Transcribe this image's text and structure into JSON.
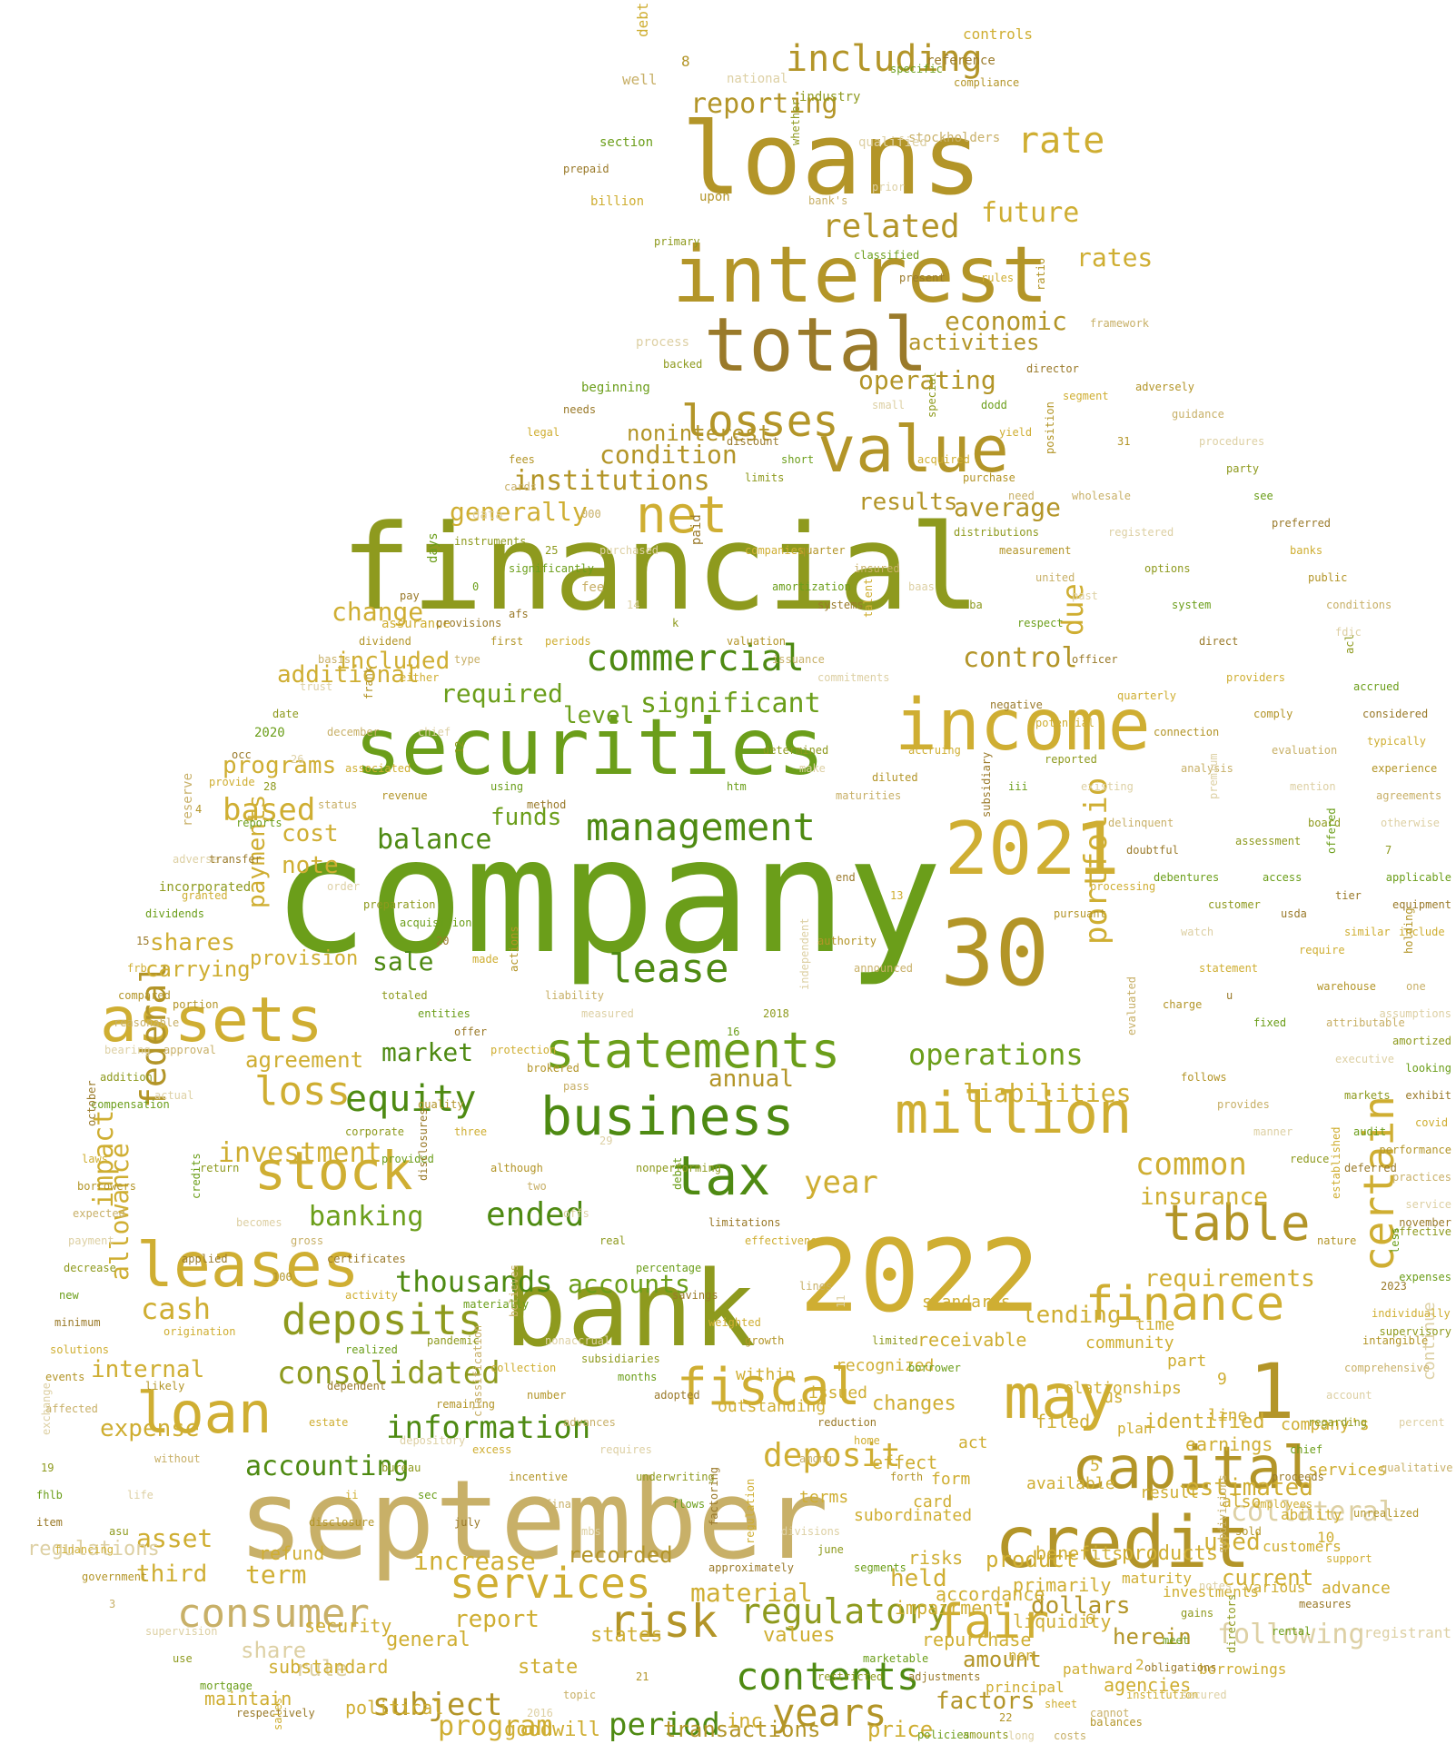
{
  "palette": {
    "background": "#ffffff",
    "green_dark": "#4e8a12",
    "green": "#6b9e1a",
    "olive": "#8e9a1e",
    "gold_dark": "#b39528",
    "gold": "#cfae32",
    "tan": "#c8b068",
    "light_tan": "#ddd0a4",
    "brown": "#9a7a2a"
  },
  "words": [
    "company",
    "financial",
    "september",
    "bank",
    "2022",
    "loans",
    "securities",
    "interest",
    "total",
    "30",
    "2021",
    "income",
    "value",
    "credit",
    "business",
    "statements",
    "capital",
    "million",
    "assets",
    "may",
    "leases",
    "loan",
    "tax",
    "fiscal",
    "finance",
    "fair",
    "stock",
    "table",
    "risk",
    "services",
    "deposits",
    "consumer",
    "net",
    "commercial",
    "management",
    "lease",
    "losses",
    "1",
    "certain",
    "contents",
    "years",
    "equity",
    "including",
    "related",
    "rate",
    "deposit",
    "information",
    "loss",
    "federal",
    "consolidated",
    "banking",
    "regulatory",
    "period",
    "cash",
    "year",
    "accounting",
    "operations",
    "liabilities",
    "subject",
    "ended",
    "portfolio",
    "due",
    "thousands",
    "program",
    "investment",
    "allowance",
    "common",
    "collateral",
    "following",
    "insurance",
    "lending",
    "requirements",
    "accounts",
    "reporting",
    "rates",
    "future",
    "economic",
    "operating",
    "activities",
    "condition",
    "institutions",
    "noninterest",
    "results",
    "average",
    "generally",
    "significant",
    "included",
    "control",
    "additional",
    "change",
    "required",
    "level",
    "balance",
    "funds",
    "based",
    "programs",
    "cost",
    "payments",
    "note",
    "shares",
    "carrying",
    "provision",
    "sale",
    "market",
    "annual",
    "agreement",
    "impact",
    "internal",
    "expense",
    "asset",
    "third",
    "regulations",
    "share",
    "rule",
    "report",
    "increase",
    "term",
    "recorded",
    "material",
    "held",
    "dollars",
    "herein",
    "amount",
    "factors",
    "transactions",
    "price",
    "goodwill",
    "inc",
    "values",
    "general",
    "states",
    "state",
    "political",
    "maintain",
    "security",
    "refund",
    "substandard",
    "impairment",
    "risks",
    "accordance",
    "repurchase",
    "liquidity",
    "primarily",
    "benefits",
    "agencies",
    "product",
    "products",
    "used",
    "current",
    "advance",
    "continue",
    "registrant",
    "estimated",
    "identified",
    "earnings",
    "9",
    "part",
    "filed",
    "act",
    "available",
    "effect",
    "changes",
    "receivable",
    "recognized",
    "terms",
    "subordinated",
    "form",
    "card",
    "outstanding",
    "within",
    "issued",
    "plan",
    "standards",
    "relationships",
    "community",
    "time",
    "us",
    "5",
    "result",
    "also",
    "line",
    "company's",
    "services",
    "ability",
    "10",
    "customers",
    "various",
    "investments",
    "maturity",
    "6",
    "non",
    "principal",
    "pathward",
    "borrowings",
    "2",
    "debt",
    "8",
    "well",
    "national",
    "industry",
    "specific",
    "reference",
    "controls",
    "compliance",
    "stockholders",
    "qualified",
    "whether",
    "section",
    "prepaid",
    "billion",
    "upon",
    "bank's",
    "prior",
    "primary",
    "classified",
    "present",
    "rules",
    "ratio",
    "framework",
    "process",
    "backed",
    "beginning",
    "needs",
    "legal",
    "fees",
    "cards",
    "data",
    "instruments",
    "days",
    "pay",
    "assurance",
    "dividend",
    "basis",
    "trust",
    "date",
    "2020",
    "occ",
    "provide",
    "4",
    "reserve",
    "adverse",
    "incorporated",
    "dividends",
    "15",
    "frb",
    "compared",
    "reasonable",
    "bearing",
    "addition",
    "compensation",
    "october",
    "laws",
    "borrowers",
    "expected",
    "payment",
    "decrease",
    "new",
    "minimum",
    "solutions",
    "events",
    "affected",
    "exchange",
    "19",
    "fhlb",
    "item",
    "financing",
    "government",
    "3",
    "supervision",
    "use",
    "mortgage",
    "respectively",
    "sales",
    "adversely",
    "guidance",
    "procedures",
    "party",
    "see",
    "preferred",
    "banks",
    "public",
    "conditions",
    "fdic",
    "acl",
    "accrued",
    "considered",
    "typically",
    "experience",
    "agreements",
    "otherwise",
    "7",
    "applicable",
    "equipment",
    "include",
    "holding",
    "one",
    "assumptions",
    "amortized",
    "looking",
    "exhibit",
    "covid",
    "performance",
    "practices",
    "service",
    "effective",
    "less",
    "2023",
    "individually",
    "intangible",
    "comprehensive",
    "account",
    "regarding",
    "chief",
    "proceeds",
    "employees",
    "sold",
    "subdivisions",
    "notes",
    "gains",
    "meet",
    "obligations",
    "institution",
    "balances",
    "costs",
    "long",
    "amounts",
    "policies",
    "paid",
    "companies",
    "quarter",
    "insured",
    "baas",
    "sba",
    "respect",
    "officer",
    "quarterly",
    "connection",
    "analysis",
    "premium",
    "assessment",
    "access",
    "usda",
    "require",
    "warehouse",
    "attributable",
    "executive",
    "markets",
    "audit",
    "deferred",
    "established",
    "nature",
    "fee",
    "14",
    "k",
    "0",
    "afs",
    "periods",
    "first",
    "type",
    "chief",
    "12",
    "using",
    "method",
    "associated",
    "revenue",
    "status",
    "order",
    "preparation",
    "acquisition",
    "20",
    "made",
    "actions",
    "liability",
    "measured",
    "totaled",
    "entities",
    "offer",
    "protection",
    "brokered",
    "pass",
    "29",
    "nonperforming",
    "debit",
    "limitations",
    "effectiveness",
    "although",
    "two",
    "offs",
    "real",
    "percentage",
    "savings",
    "weighted",
    "growth",
    "believes",
    "nonaccrual",
    "subsidiaries",
    "months",
    "adopted",
    "collection",
    "number",
    "advances",
    "requires",
    "underwriting",
    "flows",
    "factoring",
    "excess",
    "incentive",
    "final",
    "mbs",
    "bureau",
    "sec",
    "july",
    "ii",
    "disclosure",
    "lines",
    "11",
    "limited",
    "borrower",
    "reduction",
    "home",
    "forth",
    "among",
    "divisions",
    "june",
    "segments",
    "approximately",
    "regulation",
    "21",
    "topic",
    "2016",
    "restricted",
    "marketable",
    "adjustments",
    "sheet",
    "22",
    "cannot",
    "secured",
    "directors",
    "rental",
    "measures",
    "support",
    "unrealized",
    "qualitative",
    "percent",
    "supervisory",
    "expenses",
    "november",
    "yield",
    "position",
    "wholesale",
    "registered",
    "options",
    "system",
    "direct",
    "providers",
    "comply",
    "evaluation",
    "mention",
    "board",
    "offered",
    "tier",
    "similar",
    "follows",
    "provides",
    "manner",
    "reduce",
    "fixed",
    "u",
    "statement",
    "charge",
    "evaluated",
    "watch",
    "customer",
    "debentures",
    "doubtful",
    "processing",
    "pursuant",
    "delinquent",
    "existing",
    "reported",
    "iii",
    "subsidiary",
    "accruing",
    "diluted",
    "maturities",
    "make",
    "determined",
    "htm",
    "end",
    "13",
    "authority",
    "announced",
    "independent",
    "2018",
    "16",
    "negative",
    "potential",
    "measurement",
    "united",
    "past",
    "distributions",
    "amortization",
    "systems",
    "talent",
    "valuation",
    "issuance",
    "commitments",
    "limits",
    "short",
    "discount",
    "acquired",
    "purchase",
    "need",
    "small",
    "special",
    "dodd",
    "director",
    "segment",
    "31",
    "000",
    "purchased",
    "25",
    "significantly",
    "provisions",
    "either",
    "frank",
    "december",
    "26",
    "28",
    "reports",
    "transfer",
    "granted",
    "portion",
    "approval",
    "actual",
    "return",
    "credits",
    "applied",
    "origination",
    "likely",
    "without",
    "life",
    "asu",
    "realized",
    "dependent",
    "estate",
    "remaining",
    "classification",
    "depository",
    "pandemic",
    "materially",
    "certificates",
    "activity",
    "100",
    "gross",
    "becomes",
    "corporate",
    "provided",
    "disclosures",
    "three",
    "quality",
    "money",
    "timely",
    "earning",
    "regulators",
    "includes",
    "2019",
    "affect",
    "able",
    "guaranteed",
    "action",
    "defined",
    "currently",
    "consumers",
    "taxes",
    "underlying",
    "august",
    "review",
    "gain",
    "90",
    "contractual",
    "occur",
    "forward",
    "estimates",
    "however",
    "alternative"
  ]
}
